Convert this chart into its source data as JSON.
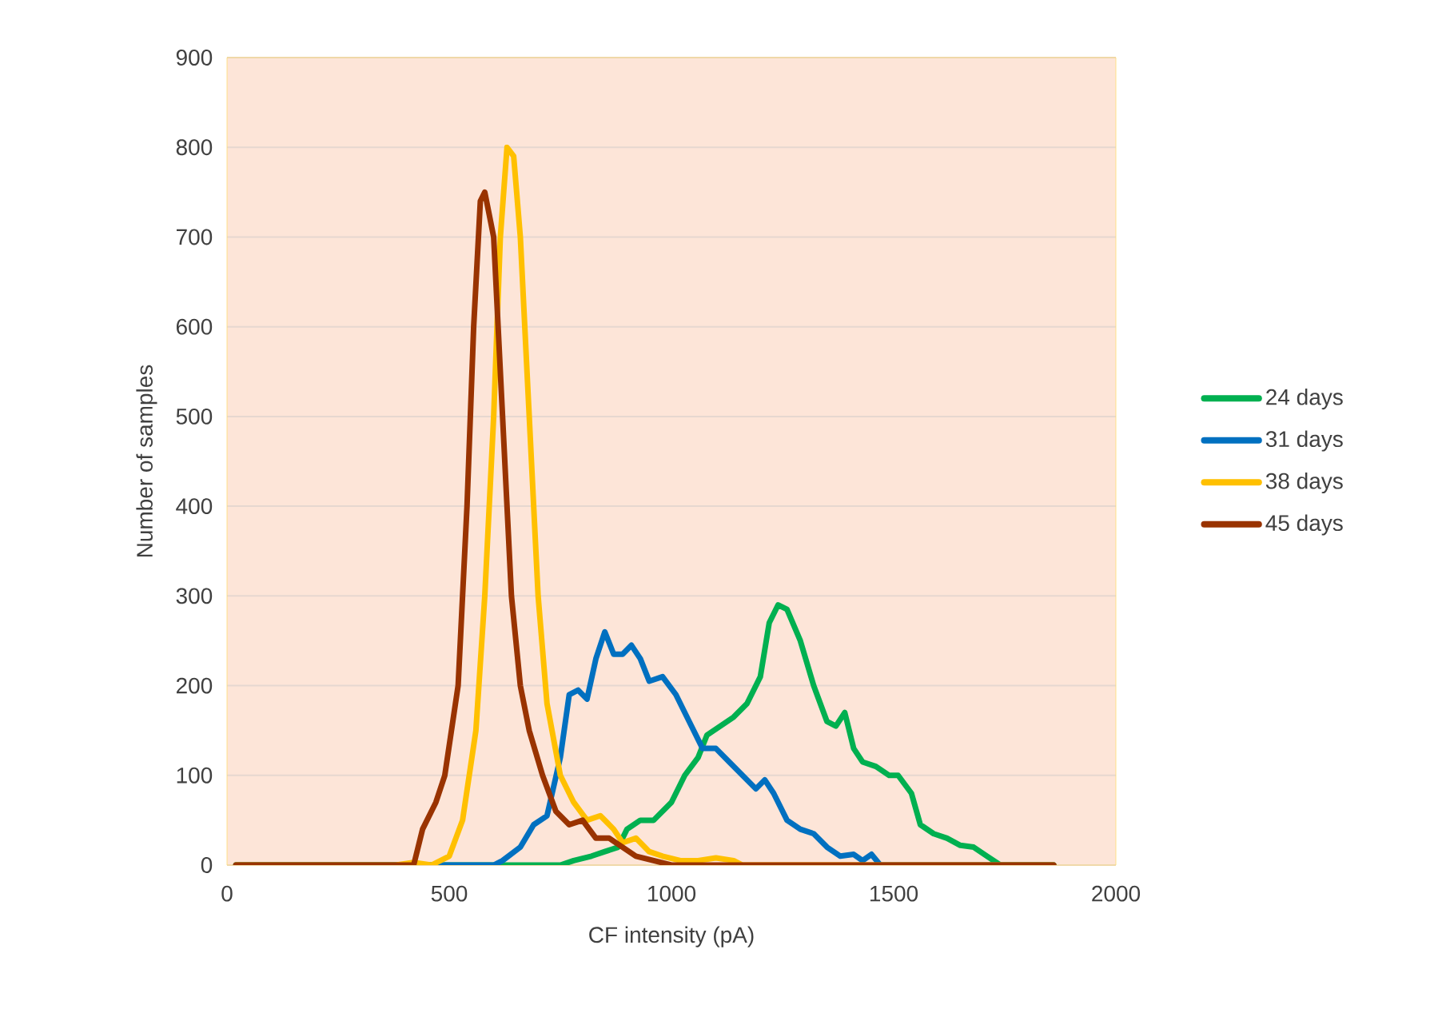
{
  "chart_data": {
    "type": "line",
    "xlabel": "CF intensity (pA)",
    "ylabel": "Number of samples",
    "xlim": [
      0,
      2000
    ],
    "xticks": [
      0,
      500,
      1000,
      1500,
      2000
    ],
    "ylim": [
      0,
      900
    ],
    "yticks": [
      0,
      100,
      200,
      300,
      400,
      500,
      600,
      700,
      800,
      900
    ],
    "grid": "y",
    "legend": "right",
    "marker": "none",
    "line_style": "solid",
    "series": [
      {
        "name": "24 days",
        "color": "#00b050",
        "x": [
          20,
          750,
          780,
          820,
          850,
          880,
          900,
          930,
          960,
          1000,
          1030,
          1060,
          1080,
          1110,
          1140,
          1170,
          1200,
          1220,
          1240,
          1260,
          1290,
          1320,
          1350,
          1370,
          1390,
          1410,
          1430,
          1460,
          1490,
          1510,
          1540,
          1560,
          1590,
          1620,
          1650,
          1680,
          1710,
          1740,
          1860
        ],
        "values": [
          0,
          0,
          5,
          10,
          15,
          20,
          40,
          50,
          50,
          70,
          100,
          120,
          145,
          155,
          165,
          180,
          210,
          270,
          290,
          285,
          250,
          200,
          160,
          155,
          170,
          130,
          115,
          110,
          100,
          100,
          80,
          45,
          35,
          30,
          22,
          20,
          10,
          0,
          0
        ]
      },
      {
        "name": "31 days",
        "color": "#0070c0",
        "x": [
          20,
          600,
          620,
          660,
          690,
          720,
          750,
          770,
          790,
          810,
          830,
          850,
          870,
          890,
          910,
          930,
          950,
          980,
          1010,
          1040,
          1070,
          1100,
          1130,
          1160,
          1190,
          1210,
          1230,
          1260,
          1290,
          1320,
          1350,
          1380,
          1410,
          1430,
          1450,
          1470,
          1860
        ],
        "values": [
          0,
          0,
          5,
          20,
          45,
          55,
          120,
          190,
          195,
          185,
          230,
          260,
          235,
          235,
          245,
          230,
          205,
          210,
          190,
          160,
          130,
          130,
          115,
          100,
          85,
          95,
          80,
          50,
          40,
          35,
          20,
          10,
          12,
          5,
          12,
          0,
          0
        ]
      },
      {
        "name": "38 days",
        "color": "#ffc000",
        "x": [
          20,
          380,
          420,
          460,
          500,
          530,
          560,
          580,
          600,
          615,
          630,
          645,
          660,
          680,
          700,
          720,
          750,
          780,
          810,
          840,
          870,
          890,
          920,
          950,
          980,
          1020,
          1060,
          1100,
          1140,
          1160,
          1860
        ],
        "values": [
          0,
          0,
          3,
          0,
          10,
          50,
          150,
          300,
          500,
          700,
          800,
          790,
          700,
          500,
          300,
          180,
          100,
          70,
          50,
          55,
          40,
          25,
          30,
          15,
          10,
          5,
          5,
          8,
          5,
          0,
          0
        ]
      },
      {
        "name": "45 days",
        "color": "#993300",
        "x": [
          20,
          420,
          440,
          470,
          490,
          520,
          540,
          555,
          570,
          580,
          600,
          620,
          640,
          660,
          680,
          710,
          740,
          770,
          800,
          830,
          860,
          890,
          920,
          960,
          1000,
          1860
        ],
        "values": [
          0,
          0,
          40,
          70,
          100,
          200,
          400,
          600,
          740,
          750,
          700,
          500,
          300,
          200,
          150,
          100,
          60,
          45,
          50,
          30,
          30,
          20,
          10,
          5,
          0,
          0
        ]
      }
    ]
  }
}
